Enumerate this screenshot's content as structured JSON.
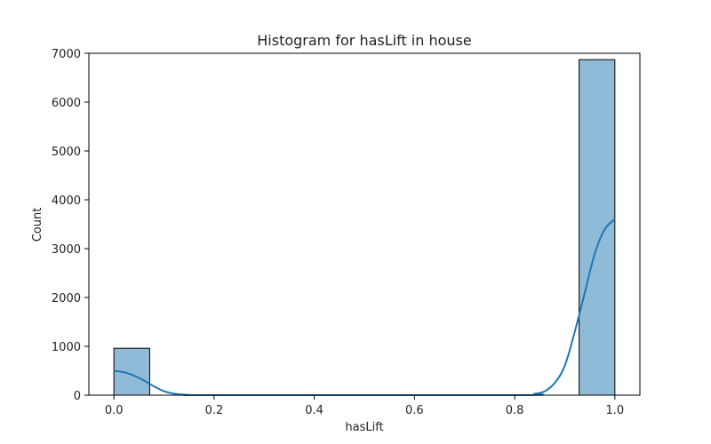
{
  "chart_data": {
    "type": "bar",
    "title": "Histogram for hasLift in house",
    "xlabel": "hasLift",
    "ylabel": "Count",
    "xlim": [
      -0.05,
      1.05
    ],
    "ylim": [
      0,
      7000
    ],
    "xticks": [
      0.0,
      0.2,
      0.4,
      0.6,
      0.8,
      1.0
    ],
    "xtick_labels": [
      "0.0",
      "0.2",
      "0.4",
      "0.6",
      "0.8",
      "1.0"
    ],
    "yticks": [
      0,
      1000,
      2000,
      3000,
      4000,
      5000,
      6000,
      7000
    ],
    "ytick_labels": [
      "0",
      "1000",
      "2000",
      "3000",
      "4000",
      "5000",
      "6000",
      "7000"
    ],
    "bins": [
      {
        "x0": 0.0,
        "x1": 0.0714,
        "count": 960
      },
      {
        "x0": 0.9286,
        "x1": 1.0,
        "count": 6870
      }
    ],
    "kde": {
      "x": [
        0.0,
        0.02,
        0.04,
        0.06,
        0.08,
        0.1,
        0.12,
        0.15,
        0.2,
        0.8,
        0.84,
        0.86,
        0.88,
        0.9,
        0.92,
        0.94,
        0.96,
        0.98,
        1.0
      ],
      "y": [
        500,
        470,
        400,
        300,
        180,
        80,
        30,
        5,
        0,
        0,
        30,
        80,
        250,
        600,
        1300,
        2100,
        2900,
        3400,
        3600
      ]
    },
    "grid": false,
    "legend": false,
    "colors": {
      "bar_fill": "#8fbbd9",
      "bar_edge": "#000000",
      "kde_line": "#1f77b4"
    }
  }
}
